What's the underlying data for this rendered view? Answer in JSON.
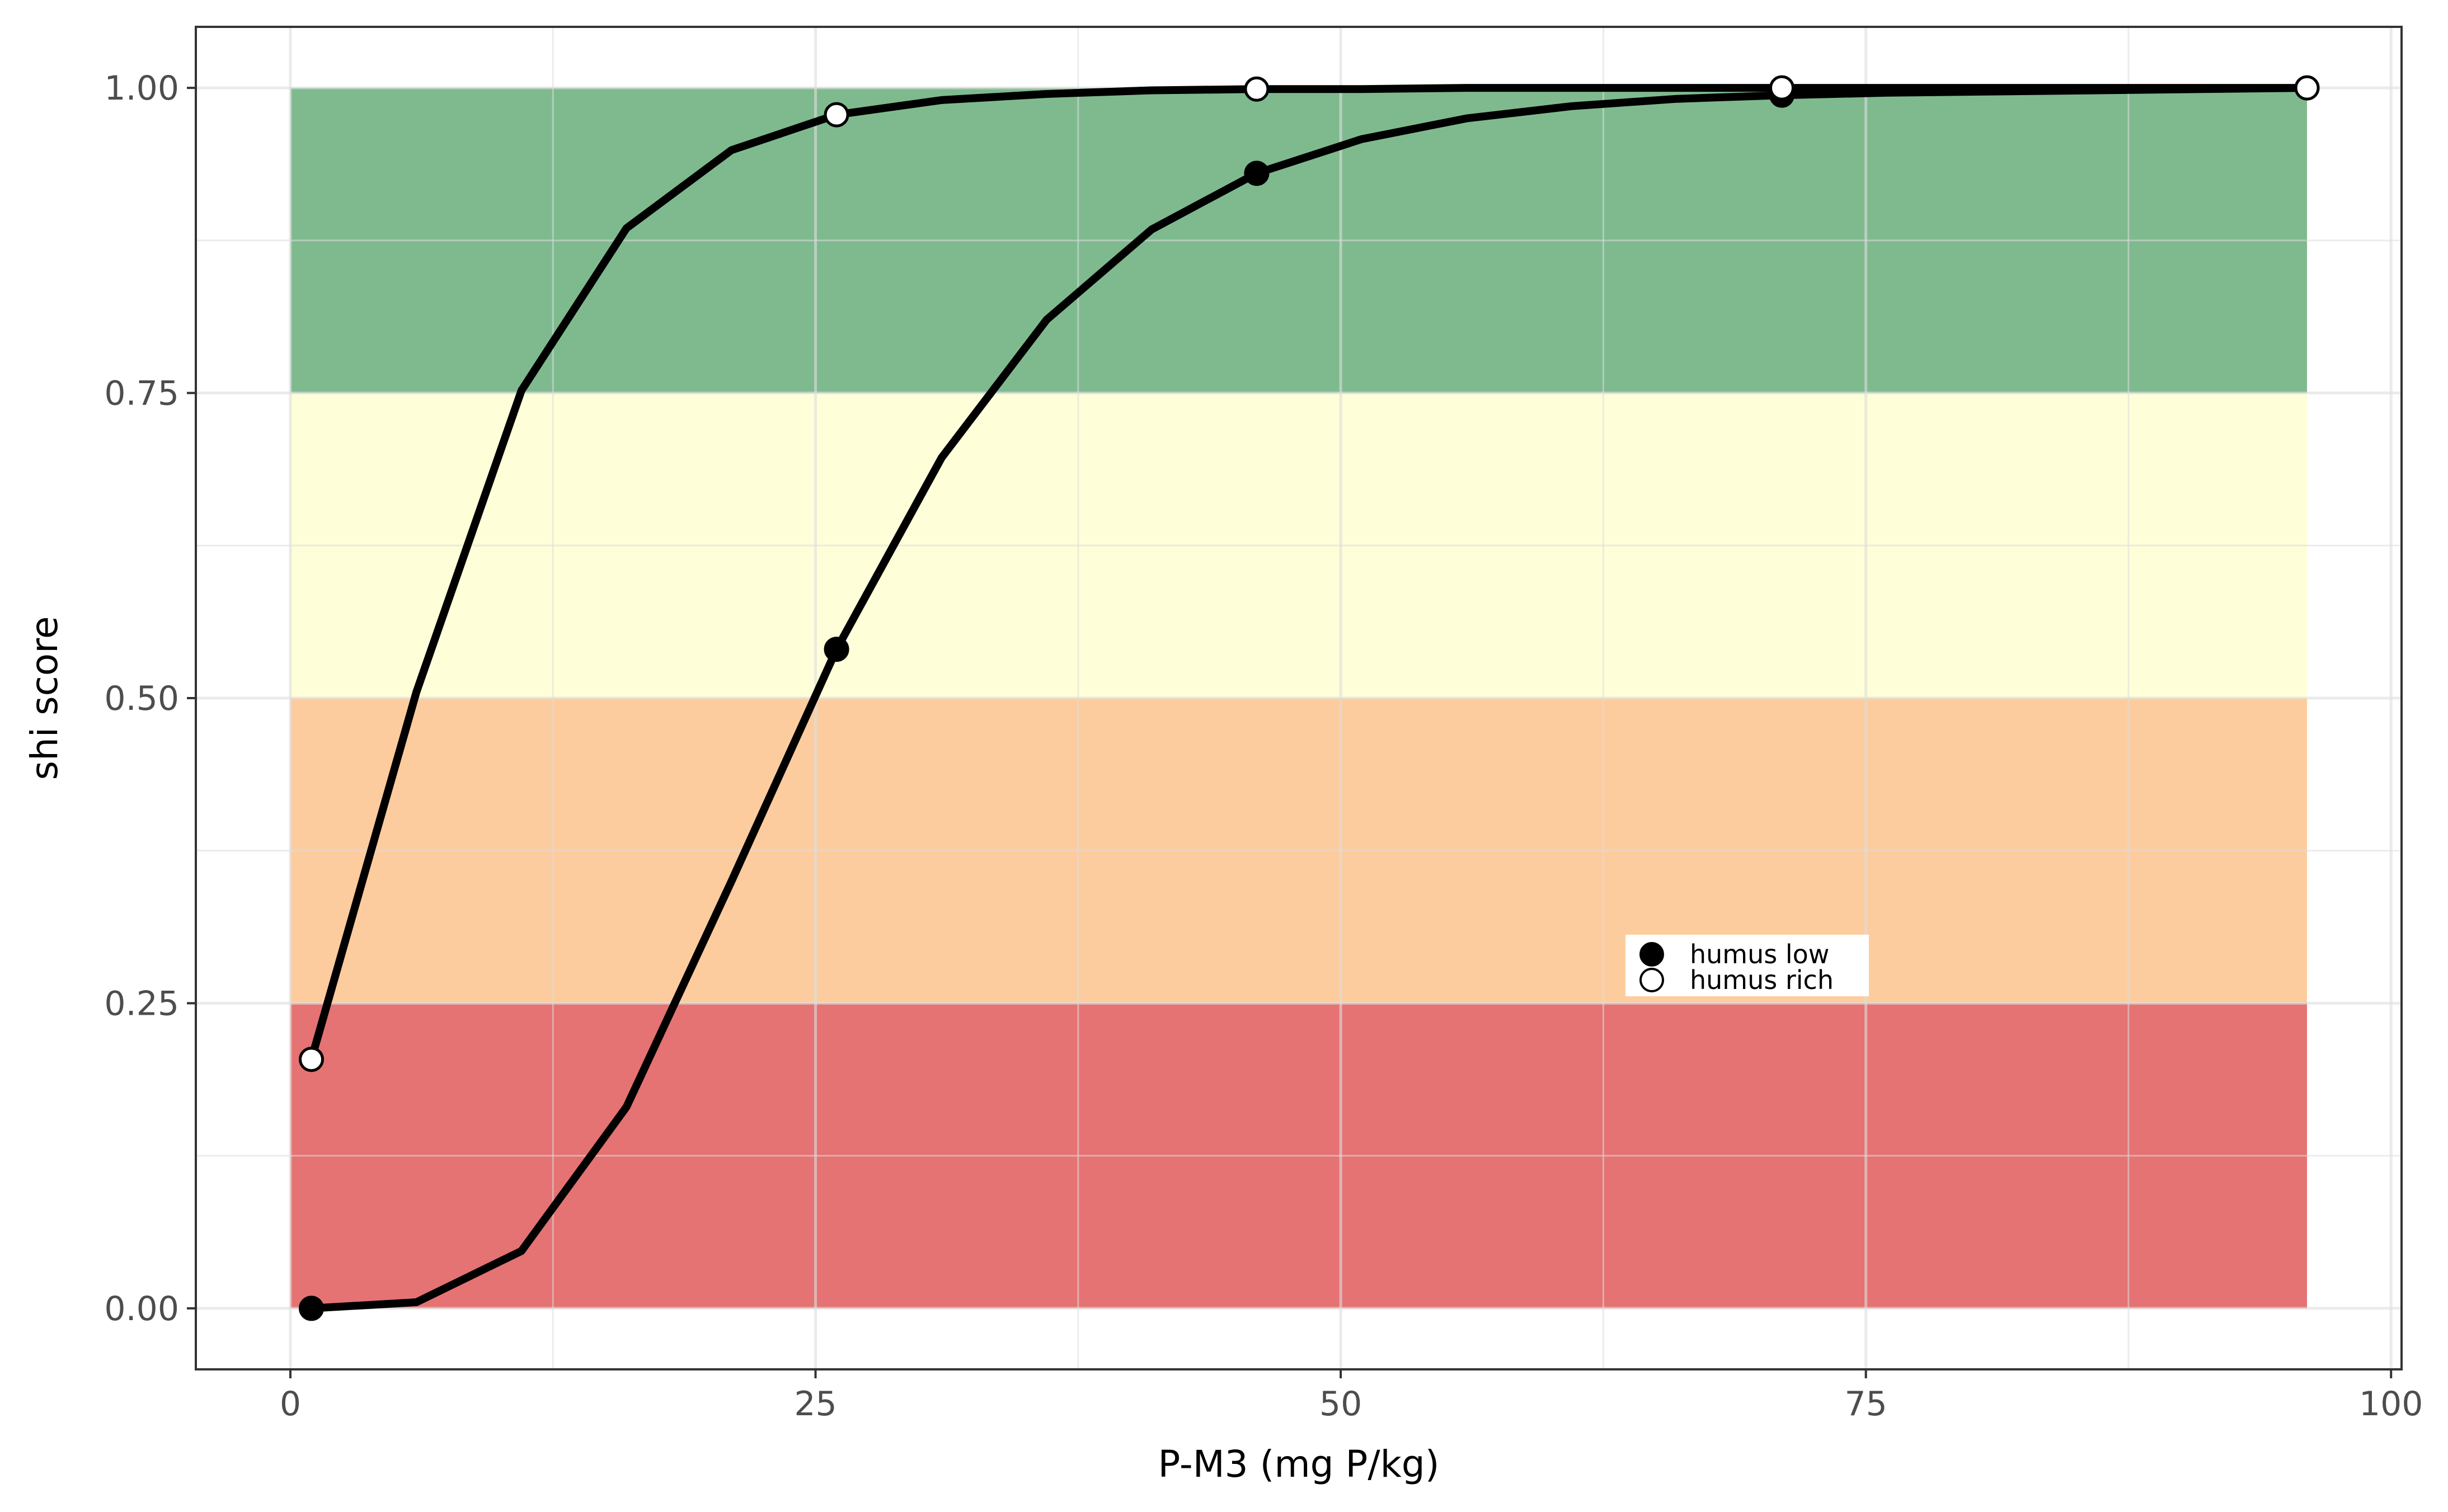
{
  "chart_data": {
    "type": "line",
    "title": "",
    "xlabel": "P-M3 (mg P/kg)",
    "ylabel": "shi score",
    "xlim": [
      -4.5,
      100.5
    ],
    "ylim": [
      -0.05,
      1.05
    ],
    "x_ticks": [
      0,
      25,
      50,
      75,
      100
    ],
    "x_tick_labels": [
      "0",
      "25",
      "50",
      "75",
      "100"
    ],
    "y_ticks": [
      0,
      0.25,
      0.5,
      0.75,
      1.0
    ],
    "y_tick_labels": [
      "0.00",
      "0.25",
      "0.50",
      "0.75",
      "1.00"
    ],
    "grid": true,
    "bands": [
      {
        "ymin": 0.0,
        "ymax": 0.25,
        "xmin": 0,
        "xmax": 96,
        "color": "#e57373"
      },
      {
        "ymin": 0.25,
        "ymax": 0.5,
        "xmin": 0,
        "xmax": 96,
        "color": "#fdcc9e"
      },
      {
        "ymin": 0.5,
        "ymax": 0.75,
        "xmin": 0,
        "xmax": 96,
        "color": "#fefed8"
      },
      {
        "ymin": 0.75,
        "ymax": 1.0,
        "xmin": 0,
        "xmax": 96,
        "color": "#7fba8f"
      }
    ],
    "series": [
      {
        "name": "humus low",
        "marker": "filled",
        "x": [
          1,
          6,
          11,
          16,
          21,
          26,
          31,
          36,
          41,
          46,
          51,
          56,
          61,
          66,
          71,
          76,
          81,
          86,
          91,
          96
        ],
        "y": [
          0.0,
          0.005,
          0.047,
          0.165,
          0.35,
          0.54,
          0.697,
          0.81,
          0.884,
          0.93,
          0.958,
          0.975,
          0.985,
          0.991,
          0.994,
          0.996,
          0.997,
          0.998,
          0.999,
          1.0
        ],
        "marker_x": [
          1,
          26,
          46,
          71
        ],
        "marker_y": [
          0.0,
          0.54,
          0.93,
          0.994
        ]
      },
      {
        "name": "humus rich",
        "marker": "open",
        "x": [
          1,
          6,
          11,
          16,
          21,
          26,
          31,
          36,
          41,
          46,
          51,
          56,
          61,
          66,
          71,
          76,
          81,
          86,
          91,
          96
        ],
        "y": [
          0.204,
          0.505,
          0.752,
          0.885,
          0.949,
          0.978,
          0.99,
          0.995,
          0.998,
          0.999,
          0.999,
          1.0,
          1.0,
          1.0,
          1.0,
          1.0,
          1.0,
          1.0,
          1.0,
          1.0
        ],
        "marker_x": [
          1,
          26,
          46,
          71,
          96
        ],
        "marker_y": [
          0.204,
          0.978,
          0.999,
          1.0,
          1.0
        ]
      }
    ],
    "legend": {
      "placement": "inside-lower-right"
    }
  }
}
